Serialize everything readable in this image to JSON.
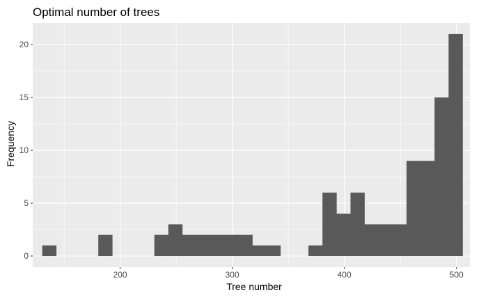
{
  "chart_data": {
    "type": "bar",
    "subtype": "histogram",
    "title": "Optimal number of trees",
    "xlabel": "Tree number",
    "ylabel": "Frequency",
    "xlim": [
      122,
      512
    ],
    "ylim": [
      -1.05,
      22.05
    ],
    "xticks": [
      200,
      300,
      400,
      500
    ],
    "yticks": [
      0,
      5,
      10,
      15,
      20
    ],
    "x_minor": [
      150,
      250,
      350,
      450
    ],
    "y_minor": [
      2.5,
      7.5,
      12.5,
      17.5
    ],
    "grid": true,
    "legend": "none",
    "colors": {
      "panel": "#ebebeb",
      "grid": "#ffffff",
      "bar": "#595959",
      "tick": "#333333"
    },
    "bins": [
      {
        "x0": 130.5,
        "x1": 143.0,
        "value": 1
      },
      {
        "x0": 143.0,
        "x1": 155.5,
        "value": 0
      },
      {
        "x0": 155.5,
        "x1": 168.0,
        "value": 0
      },
      {
        "x0": 168.0,
        "x1": 180.5,
        "value": 0
      },
      {
        "x0": 180.5,
        "x1": 193.0,
        "value": 2
      },
      {
        "x0": 193.0,
        "x1": 205.5,
        "value": 0
      },
      {
        "x0": 205.5,
        "x1": 218.0,
        "value": 0
      },
      {
        "x0": 218.0,
        "x1": 230.5,
        "value": 0
      },
      {
        "x0": 230.5,
        "x1": 243.0,
        "value": 2
      },
      {
        "x0": 243.0,
        "x1": 255.5,
        "value": 3
      },
      {
        "x0": 255.5,
        "x1": 268.0,
        "value": 2
      },
      {
        "x0": 268.0,
        "x1": 280.5,
        "value": 2
      },
      {
        "x0": 280.5,
        "x1": 293.0,
        "value": 2
      },
      {
        "x0": 293.0,
        "x1": 305.5,
        "value": 2
      },
      {
        "x0": 305.5,
        "x1": 318.0,
        "value": 2
      },
      {
        "x0": 318.0,
        "x1": 330.5,
        "value": 1
      },
      {
        "x0": 330.5,
        "x1": 343.0,
        "value": 1
      },
      {
        "x0": 343.0,
        "x1": 355.5,
        "value": 0
      },
      {
        "x0": 355.5,
        "x1": 368.0,
        "value": 0
      },
      {
        "x0": 368.0,
        "x1": 380.5,
        "value": 1
      },
      {
        "x0": 380.5,
        "x1": 393.0,
        "value": 6
      },
      {
        "x0": 393.0,
        "x1": 405.5,
        "value": 4
      },
      {
        "x0": 405.5,
        "x1": 418.0,
        "value": 6
      },
      {
        "x0": 418.0,
        "x1": 430.5,
        "value": 3
      },
      {
        "x0": 430.5,
        "x1": 443.0,
        "value": 3
      },
      {
        "x0": 443.0,
        "x1": 455.5,
        "value": 3
      },
      {
        "x0": 455.5,
        "x1": 468.0,
        "value": 9
      },
      {
        "x0": 468.0,
        "x1": 480.5,
        "value": 9
      },
      {
        "x0": 480.5,
        "x1": 493.0,
        "value": 15
      },
      {
        "x0": 493.0,
        "x1": 505.5,
        "value": 21
      }
    ]
  }
}
